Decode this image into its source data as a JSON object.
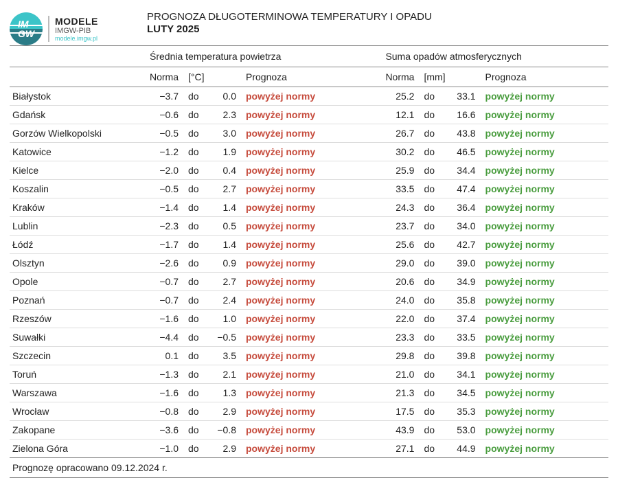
{
  "logo": {
    "mark_text": "IM\nGW",
    "line1": "MODELE",
    "line2": "IMGW-PIB",
    "line3": "modele.imgw.pl"
  },
  "title": {
    "line1": "PROGNOZA DŁUGOTERMINOWA TEMPERATURY I OPADU",
    "line2": "LUTY 2025"
  },
  "sections": {
    "temp": "Średnia temperatura powietrza",
    "precip": "Suma opadów atmosferycznych"
  },
  "columns": {
    "norma": "Norma",
    "temp_unit": "[°C]",
    "precip_unit": "[mm]",
    "prognoza": "Prognoza",
    "do": "do"
  },
  "forecast_labels": {
    "above": "powyżej normy"
  },
  "colors": {
    "temp_forecast": "#c64b3c",
    "precip_forecast": "#4a9d3f",
    "border": "#888888",
    "row_border": "#dddddd",
    "text": "#222222",
    "logo_top": "#3cc4c8",
    "logo_bottom": "#2b7c87"
  },
  "rows": [
    {
      "city": "Białystok",
      "t_lo": "−3.7",
      "t_hi": "0.0",
      "p_lo": "25.2",
      "p_hi": "33.1"
    },
    {
      "city": "Gdańsk",
      "t_lo": "−0.6",
      "t_hi": "2.3",
      "p_lo": "12.1",
      "p_hi": "16.6"
    },
    {
      "city": "Gorzów Wielkopolski",
      "t_lo": "−0.5",
      "t_hi": "3.0",
      "p_lo": "26.7",
      "p_hi": "43.8"
    },
    {
      "city": "Katowice",
      "t_lo": "−1.2",
      "t_hi": "1.9",
      "p_lo": "30.2",
      "p_hi": "46.5"
    },
    {
      "city": "Kielce",
      "t_lo": "−2.0",
      "t_hi": "0.4",
      "p_lo": "25.9",
      "p_hi": "34.4"
    },
    {
      "city": "Koszalin",
      "t_lo": "−0.5",
      "t_hi": "2.7",
      "p_lo": "33.5",
      "p_hi": "47.4"
    },
    {
      "city": "Kraków",
      "t_lo": "−1.4",
      "t_hi": "1.4",
      "p_lo": "24.3",
      "p_hi": "36.4"
    },
    {
      "city": "Lublin",
      "t_lo": "−2.3",
      "t_hi": "0.5",
      "p_lo": "23.7",
      "p_hi": "34.0"
    },
    {
      "city": "Łódź",
      "t_lo": "−1.7",
      "t_hi": "1.4",
      "p_lo": "25.6",
      "p_hi": "42.7"
    },
    {
      "city": "Olsztyn",
      "t_lo": "−2.6",
      "t_hi": "0.9",
      "p_lo": "29.0",
      "p_hi": "39.0"
    },
    {
      "city": "Opole",
      "t_lo": "−0.7",
      "t_hi": "2.7",
      "p_lo": "20.6",
      "p_hi": "34.9"
    },
    {
      "city": "Poznań",
      "t_lo": "−0.7",
      "t_hi": "2.4",
      "p_lo": "24.0",
      "p_hi": "35.8"
    },
    {
      "city": "Rzeszów",
      "t_lo": "−1.6",
      "t_hi": "1.0",
      "p_lo": "22.0",
      "p_hi": "37.4"
    },
    {
      "city": "Suwałki",
      "t_lo": "−4.4",
      "t_hi": "−0.5",
      "p_lo": "23.3",
      "p_hi": "33.5"
    },
    {
      "city": "Szczecin",
      "t_lo": "0.1",
      "t_hi": "3.5",
      "p_lo": "29.8",
      "p_hi": "39.8"
    },
    {
      "city": "Toruń",
      "t_lo": "−1.3",
      "t_hi": "2.1",
      "p_lo": "21.0",
      "p_hi": "34.1"
    },
    {
      "city": "Warszawa",
      "t_lo": "−1.6",
      "t_hi": "1.3",
      "p_lo": "21.3",
      "p_hi": "34.5"
    },
    {
      "city": "Wrocław",
      "t_lo": "−0.8",
      "t_hi": "2.9",
      "p_lo": "17.5",
      "p_hi": "35.3"
    },
    {
      "city": "Zakopane",
      "t_lo": "−3.6",
      "t_hi": "−0.8",
      "p_lo": "43.9",
      "p_hi": "53.0"
    },
    {
      "city": "Zielona Góra",
      "t_lo": "−1.0",
      "t_hi": "2.9",
      "p_lo": "27.1",
      "p_hi": "44.9"
    }
  ],
  "footer": "Prognozę opracowano 09.12.2024 r."
}
